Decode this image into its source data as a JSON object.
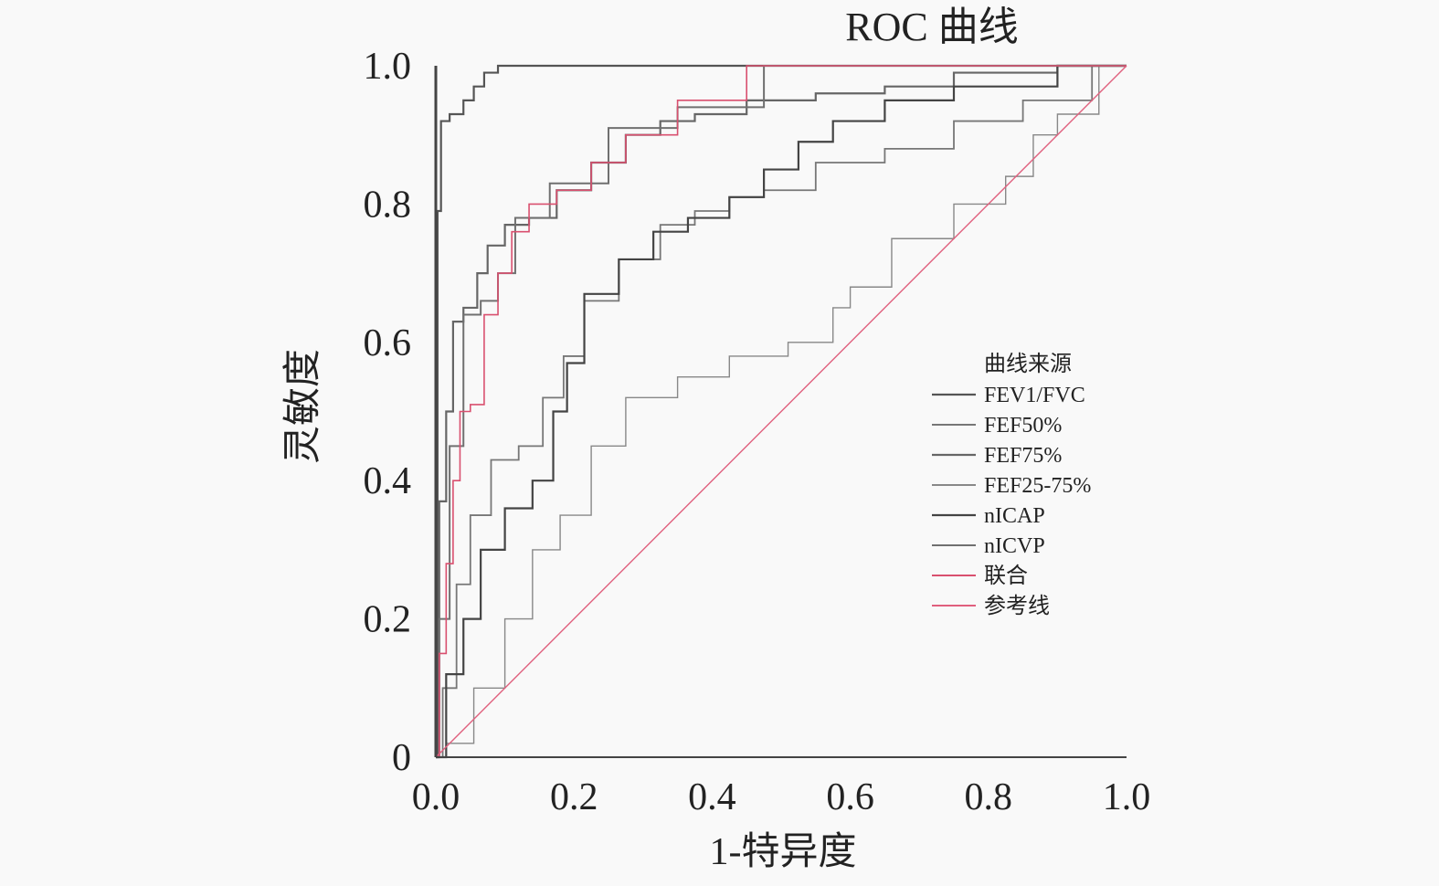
{
  "chart_data": {
    "type": "line",
    "title": "ROC 曲线",
    "xlabel": "1-特异度",
    "ylabel": "灵敏度",
    "xlim": [
      0,
      1
    ],
    "ylim": [
      0,
      1
    ],
    "x_ticks": [
      "0.0",
      "0.2",
      "0.4",
      "0.6",
      "0.8",
      "1.0"
    ],
    "x_tick_values": [
      0,
      0.2,
      0.4,
      0.6,
      0.8,
      1.0
    ],
    "y_ticks": [
      "0",
      "0.2",
      "0.4",
      "0.6",
      "0.8",
      "1.0"
    ],
    "y_tick_values": [
      0,
      0.2,
      0.4,
      0.6,
      0.8,
      1.0
    ],
    "grid": false,
    "legend": {
      "title": "曲线来源",
      "placement": "center-right"
    },
    "series": [
      {
        "name": "FEV1/FVC",
        "color": "#555555",
        "width": 2.2,
        "points": [
          [
            0,
            0
          ],
          [
            0.005,
            0.79
          ],
          [
            0.01,
            0.92
          ],
          [
            0.03,
            0.93
          ],
          [
            0.05,
            0.95
          ],
          [
            0.06,
            0.97
          ],
          [
            0.08,
            0.99
          ],
          [
            0.1,
            1.0
          ],
          [
            1,
            1
          ]
        ]
      },
      {
        "name": "FEF50%",
        "color": "#777777",
        "width": 1.8,
        "points": [
          [
            0,
            0
          ],
          [
            0.02,
            0.1
          ],
          [
            0.04,
            0.25
          ],
          [
            0.06,
            0.35
          ],
          [
            0.1,
            0.43
          ],
          [
            0.14,
            0.45
          ],
          [
            0.17,
            0.52
          ],
          [
            0.2,
            0.58
          ],
          [
            0.23,
            0.66
          ],
          [
            0.3,
            0.72
          ],
          [
            0.35,
            0.77
          ],
          [
            0.4,
            0.79
          ],
          [
            0.45,
            0.81
          ],
          [
            0.5,
            0.82
          ],
          [
            0.6,
            0.86
          ],
          [
            0.7,
            0.88
          ],
          [
            0.8,
            0.92
          ],
          [
            0.9,
            0.95
          ],
          [
            1,
            1
          ]
        ]
      },
      {
        "name": "FEF75%",
        "color": "#666666",
        "width": 2.2,
        "points": [
          [
            0,
            0
          ],
          [
            0.01,
            0.37
          ],
          [
            0.02,
            0.5
          ],
          [
            0.03,
            0.63
          ],
          [
            0.05,
            0.65
          ],
          [
            0.07,
            0.7
          ],
          [
            0.08,
            0.74
          ],
          [
            0.12,
            0.77
          ],
          [
            0.15,
            0.78
          ],
          [
            0.2,
            0.82
          ],
          [
            0.25,
            0.86
          ],
          [
            0.3,
            0.9
          ],
          [
            0.35,
            0.92
          ],
          [
            0.4,
            0.93
          ],
          [
            0.5,
            0.95
          ],
          [
            0.6,
            0.96
          ],
          [
            0.7,
            0.97
          ],
          [
            0.8,
            0.99
          ],
          [
            1,
            1
          ]
        ]
      },
      {
        "name": "FEF25-75%",
        "color": "#888888",
        "width": 1.4,
        "points": [
          [
            0,
            0
          ],
          [
            0.03,
            0.02
          ],
          [
            0.08,
            0.1
          ],
          [
            0.12,
            0.2
          ],
          [
            0.16,
            0.3
          ],
          [
            0.2,
            0.35
          ],
          [
            0.25,
            0.45
          ],
          [
            0.3,
            0.52
          ],
          [
            0.4,
            0.55
          ],
          [
            0.45,
            0.58
          ],
          [
            0.57,
            0.6
          ],
          [
            0.58,
            0.65
          ],
          [
            0.62,
            0.68
          ],
          [
            0.7,
            0.75
          ],
          [
            0.8,
            0.8
          ],
          [
            0.85,
            0.84
          ],
          [
            0.88,
            0.9
          ],
          [
            0.92,
            0.93
          ],
          [
            1,
            1
          ]
        ]
      },
      {
        "name": "nICAP",
        "color": "#444444",
        "width": 2.2,
        "points": [
          [
            0,
            0
          ],
          [
            0.03,
            0.12
          ],
          [
            0.05,
            0.2
          ],
          [
            0.08,
            0.3
          ],
          [
            0.12,
            0.36
          ],
          [
            0.16,
            0.4
          ],
          [
            0.18,
            0.5
          ],
          [
            0.2,
            0.57
          ],
          [
            0.23,
            0.67
          ],
          [
            0.3,
            0.72
          ],
          [
            0.33,
            0.76
          ],
          [
            0.4,
            0.78
          ],
          [
            0.45,
            0.81
          ],
          [
            0.5,
            0.85
          ],
          [
            0.55,
            0.89
          ],
          [
            0.6,
            0.92
          ],
          [
            0.7,
            0.95
          ],
          [
            0.8,
            0.97
          ],
          [
            1,
            1
          ]
        ]
      },
      {
        "name": "nICVP",
        "color": "#707070",
        "width": 2.0,
        "points": [
          [
            0,
            0
          ],
          [
            0.01,
            0.2
          ],
          [
            0.03,
            0.45
          ],
          [
            0.05,
            0.64
          ],
          [
            0.08,
            0.66
          ],
          [
            0.1,
            0.7
          ],
          [
            0.13,
            0.78
          ],
          [
            0.2,
            0.83
          ],
          [
            0.3,
            0.91
          ],
          [
            0.4,
            0.94
          ],
          [
            0.55,
            1
          ],
          [
            1,
            1
          ]
        ]
      },
      {
        "name": "联合",
        "color": "#d9506f",
        "width": 1.6,
        "points": [
          [
            0,
            0
          ],
          [
            0.01,
            0.15
          ],
          [
            0.02,
            0.28
          ],
          [
            0.03,
            0.4
          ],
          [
            0.04,
            0.5
          ],
          [
            0.06,
            0.51
          ],
          [
            0.08,
            0.64
          ],
          [
            0.1,
            0.7
          ],
          [
            0.12,
            0.76
          ],
          [
            0.15,
            0.8
          ],
          [
            0.2,
            0.82
          ],
          [
            0.25,
            0.86
          ],
          [
            0.3,
            0.9
          ],
          [
            0.4,
            0.95
          ],
          [
            0.5,
            1.0
          ],
          [
            1,
            1
          ]
        ]
      },
      {
        "name": "参考线",
        "color": "#e0607e",
        "width": 1.4,
        "points": [
          [
            0,
            0
          ],
          [
            1,
            1
          ]
        ]
      }
    ]
  }
}
